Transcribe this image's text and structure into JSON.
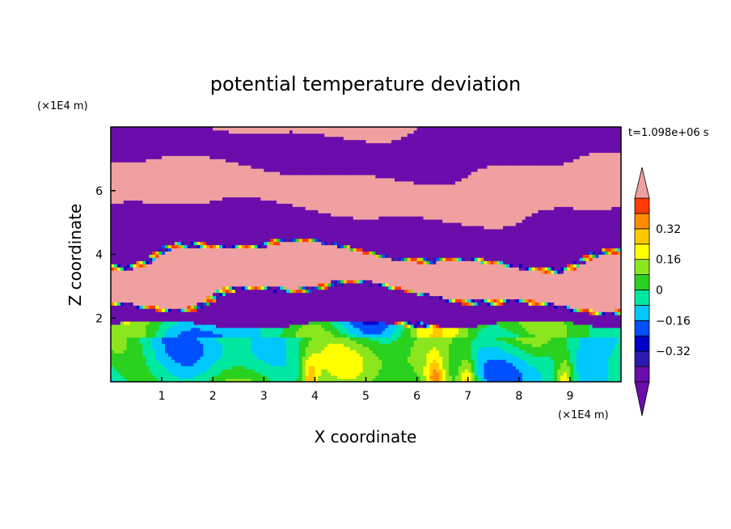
{
  "chart_data": {
    "type": "heatmap",
    "title": "potential temperature deviation",
    "xlabel": "X coordinate",
    "ylabel": "Z coordinate",
    "x_unit": "(×1E4 m)",
    "y_unit": "(×1E4 m)",
    "time_label": "t=1.098e+06 s",
    "xlim": [
      0,
      10
    ],
    "ylim": [
      0,
      8
    ],
    "x_ticks": [
      "1",
      "2",
      "3",
      "4",
      "5",
      "6",
      "7",
      "8",
      "9"
    ],
    "y_ticks": [
      "2",
      "4",
      "6"
    ],
    "colorbar": {
      "levels": [
        -0.48,
        -0.4,
        -0.32,
        -0.24,
        -0.16,
        -0.08,
        0,
        0.08,
        0.16,
        0.24,
        0.32,
        0.4,
        0.48
      ],
      "colors": [
        "#6a0dab",
        "#2b1ab0",
        "#0000c8",
        "#0050ff",
        "#00c8ff",
        "#00e8a0",
        "#2ad11e",
        "#8ce61e",
        "#ffff00",
        "#ffc800",
        "#ff8c00",
        "#ff3c00",
        "#f0a0a0"
      ],
      "extend_low_color": "#6a0dab",
      "extend_high_color": "#f0a0a0",
      "tick_labels": [
        "0.32",
        "0.16",
        "0",
        "−0.16",
        "−0.32"
      ]
    },
    "regions": [
      {
        "z_range": [
          1.8,
          8
        ],
        "description_value": "alternating bands near +0.48 and -0.48"
      },
      {
        "z_range": [
          0,
          1.8
        ],
        "description_value": "mostly -0.16 to 0.16"
      }
    ]
  }
}
